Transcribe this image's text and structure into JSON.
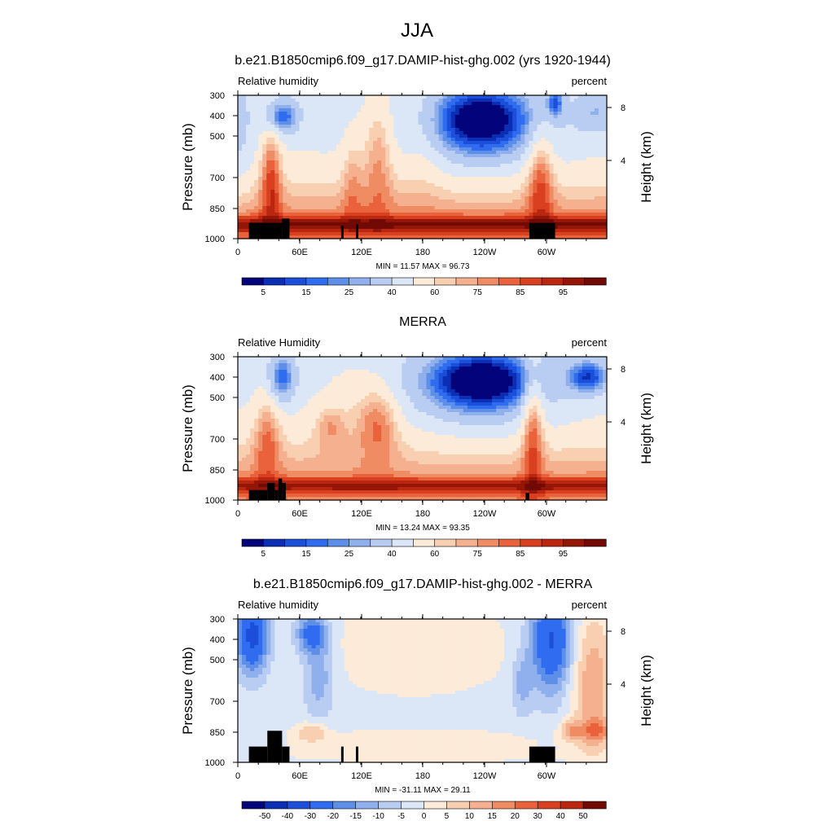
{
  "main_title": "JJA",
  "chart_data": [
    {
      "type": "heatmap",
      "title": "b.e21.B1850cmip6.f09_g17.DAMIP-hist-ghg.002 (yrs 1920-1944)",
      "left_label": "Relative humidity",
      "right_label": "percent",
      "ylabel": "Pressure (mb)",
      "ylabel_right": "Height (km)",
      "x_ticks": [
        "0",
        "60E",
        "120E",
        "180",
        "120W",
        "60W"
      ],
      "y_ticks": [
        "300",
        "400",
        "500",
        "700",
        "850",
        "1000"
      ],
      "height_ticks": [
        "8",
        "4"
      ],
      "stats": "MIN = 11.57  MAX = 96.73",
      "colorbar_labels": [
        "5",
        "15",
        "25",
        "40",
        "60",
        "75",
        "85",
        "95"
      ],
      "colorbar_colors": [
        "#03037a",
        "#0a2fb4",
        "#1c4fd9",
        "#2f6cf0",
        "#5e8fe8",
        "#8fb0ed",
        "#b8cdf1",
        "#dbe6f6",
        "#fdebd9",
        "#f9cfb1",
        "#f5b08f",
        "#f08c63",
        "#e9623c",
        "#d8401f",
        "#bb2611",
        "#941606",
        "#710904"
      ]
    },
    {
      "type": "heatmap",
      "title": "MERRA",
      "left_label": "Relative Humidity",
      "right_label": "percent",
      "ylabel": "Pressure (mb)",
      "ylabel_right": "Height (km)",
      "x_ticks": [
        "0",
        "60E",
        "120E",
        "180",
        "120W",
        "60W"
      ],
      "y_ticks": [
        "300",
        "400",
        "500",
        "700",
        "850",
        "1000"
      ],
      "height_ticks": [
        "8",
        "4"
      ],
      "stats": "MIN = 13.24  MAX = 93.35",
      "colorbar_labels": [
        "5",
        "15",
        "25",
        "40",
        "60",
        "75",
        "85",
        "95"
      ],
      "colorbar_colors": [
        "#03037a",
        "#0a2fb4",
        "#1c4fd9",
        "#2f6cf0",
        "#5e8fe8",
        "#8fb0ed",
        "#b8cdf1",
        "#dbe6f6",
        "#fdebd9",
        "#f9cfb1",
        "#f5b08f",
        "#f08c63",
        "#e9623c",
        "#d8401f",
        "#bb2611",
        "#941606",
        "#710904"
      ]
    },
    {
      "type": "heatmap",
      "title": "b.e21.B1850cmip6.f09_g17.DAMIP-hist-ghg.002 - MERRA",
      "left_label": "Relative humidity",
      "right_label": "percent",
      "ylabel": "Pressure (mb)",
      "ylabel_right": "Height (km)",
      "x_ticks": [
        "0",
        "60E",
        "120E",
        "180",
        "120W",
        "60W"
      ],
      "y_ticks": [
        "300",
        "400",
        "500",
        "700",
        "850",
        "1000"
      ],
      "height_ticks": [
        "8",
        "4"
      ],
      "stats": "MIN = -31.11  MAX = 29.11",
      "colorbar_labels": [
        "-50",
        "-40",
        "-30",
        "-20",
        "-15",
        "-10",
        "-5",
        "0",
        "5",
        "10",
        "15",
        "20",
        "30",
        "40",
        "50"
      ],
      "colorbar_colors": [
        "#03037a",
        "#0a2fb4",
        "#1c4fd9",
        "#2f6cf0",
        "#5e8fe8",
        "#8fb0ed",
        "#b8cdf1",
        "#dbe6f6",
        "#fdebd9",
        "#f9cfb1",
        "#f5b08f",
        "#f08c63",
        "#e9623c",
        "#d8401f",
        "#bb2611",
        "#710904"
      ]
    }
  ]
}
